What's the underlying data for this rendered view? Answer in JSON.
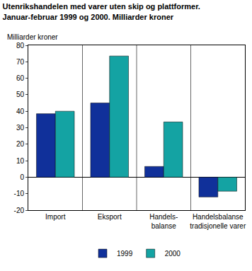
{
  "chart_data": {
    "type": "bar",
    "title": "Utenrikshandelen med varer uten skip og plattformer.\nJanuar-februar 1999 og 2000. Milliarder kroner",
    "y_label": "Milliarder kroner",
    "categories": [
      "Import",
      "Eksport",
      "Handels-\nbalanse",
      "Handelsbalanse\ntradisjonelle varer"
    ],
    "series": [
      {
        "name": "1999",
        "color": "#10309a",
        "values": [
          38.5,
          45,
          6.5,
          -12
        ]
      },
      {
        "name": "2000",
        "color": "#14a3a3",
        "values": [
          40,
          73.5,
          33.5,
          -8.5
        ]
      }
    ],
    "ylim": [
      -20,
      80
    ],
    "yticks": [
      -20,
      -10,
      0,
      10,
      20,
      30,
      40,
      50,
      60,
      70,
      80
    ],
    "grid": false,
    "legend": "bottom"
  }
}
